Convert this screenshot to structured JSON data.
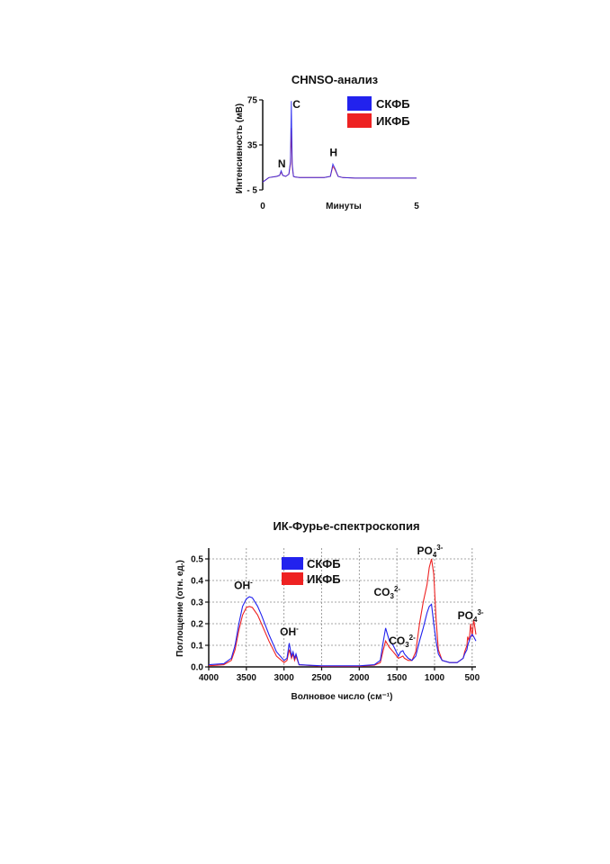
{
  "chart_data": [
    {
      "type": "line",
      "title": "CHNSO-анализ",
      "xlabel": "Минуты",
      "ylabel": "Интенсивность (мВ)",
      "xlim": [
        0,
        5
      ],
      "ylim": [
        -5,
        75
      ],
      "x_ticks": [
        "0",
        "5"
      ],
      "y_ticks": [
        "75",
        "35",
        "- 5"
      ],
      "y_tick_values": [
        75,
        35,
        -5
      ],
      "grid": false,
      "legend_position": "top-right",
      "series": [
        {
          "name": "СКФБ",
          "color": "#2222ee",
          "x": [
            0.0,
            0.2,
            0.45,
            0.55,
            0.6,
            0.65,
            0.75,
            0.85,
            0.9,
            0.93,
            0.96,
            1.0,
            1.05,
            1.2,
            1.5,
            2.0,
            2.2,
            2.28,
            2.35,
            2.45,
            2.6,
            3.0,
            4.0,
            5.0
          ],
          "y": [
            2,
            6,
            7,
            8,
            12,
            8,
            7,
            9,
            20,
            74,
            18,
            7,
            6.5,
            6,
            6,
            6,
            7,
            18,
            14,
            7,
            6,
            5.5,
            5.5,
            5.5
          ]
        },
        {
          "name": "ИКФБ",
          "color": "#ee2222",
          "x": [
            0.0,
            0.2,
            0.45,
            0.55,
            0.6,
            0.65,
            0.75,
            0.85,
            0.9,
            0.93,
            0.96,
            1.0,
            1.05,
            1.2,
            1.5,
            2.0,
            2.2,
            2.28,
            2.35,
            2.45,
            2.6,
            3.0,
            4.0,
            5.0
          ],
          "y": [
            2,
            6,
            7,
            8,
            11,
            8,
            7,
            9,
            18,
            50,
            16,
            7,
            6.5,
            6,
            6,
            6,
            7,
            16,
            13,
            7,
            6,
            5.5,
            5.5,
            5.5
          ]
        }
      ],
      "annotations": [
        {
          "label": "N",
          "x": 0.62,
          "y": 15
        },
        {
          "label": "C",
          "x": 1.1,
          "y": 68
        },
        {
          "label": "H",
          "x": 2.3,
          "y": 25
        }
      ]
    },
    {
      "type": "line",
      "title": "ИК-Фурье-спектроскопия",
      "xlabel": "Волновое число (см⁻¹)",
      "ylabel": "Поглощение (отн. ед.)",
      "xlim": [
        4000,
        450
      ],
      "ylim": [
        0,
        0.55
      ],
      "x_ticks": [
        4000,
        3500,
        3000,
        2500,
        2000,
        1500,
        1000,
        500
      ],
      "y_ticks": [
        "0.0",
        "0.1",
        "0.2",
        "0.3",
        "0.4",
        "0.5"
      ],
      "y_tick_values": [
        0,
        0.1,
        0.2,
        0.3,
        0.4,
        0.5
      ],
      "grid": true,
      "legend_position": "top-left",
      "series": [
        {
          "name": "СКФБ",
          "color": "#2222ee",
          "x": [
            4000,
            3800,
            3700,
            3650,
            3600,
            3550,
            3500,
            3460,
            3420,
            3350,
            3300,
            3200,
            3100,
            3000,
            2960,
            2930,
            2900,
            2880,
            2860,
            2840,
            2800,
            2500,
            2000,
            1800,
            1720,
            1680,
            1650,
            1600,
            1550,
            1480,
            1450,
            1420,
            1400,
            1350,
            1300,
            1250,
            1200,
            1150,
            1100,
            1070,
            1040,
            1010,
            980,
            950,
            900,
            800,
            700,
            620,
            600,
            570,
            560,
            540,
            520,
            500,
            480,
            450
          ],
          "y": [
            0.01,
            0.015,
            0.04,
            0.1,
            0.2,
            0.28,
            0.315,
            0.325,
            0.32,
            0.28,
            0.24,
            0.15,
            0.07,
            0.03,
            0.04,
            0.11,
            0.05,
            0.07,
            0.04,
            0.06,
            0.01,
            0.005,
            0.005,
            0.01,
            0.03,
            0.12,
            0.18,
            0.12,
            0.1,
            0.05,
            0.07,
            0.075,
            0.06,
            0.04,
            0.03,
            0.05,
            0.12,
            0.18,
            0.25,
            0.28,
            0.29,
            0.2,
            0.12,
            0.06,
            0.03,
            0.02,
            0.02,
            0.04,
            0.06,
            0.08,
            0.1,
            0.12,
            0.14,
            0.15,
            0.14,
            0.12
          ]
        },
        {
          "name": "ИКФБ",
          "color": "#ee2222",
          "x": [
            4000,
            3800,
            3700,
            3650,
            3600,
            3550,
            3500,
            3460,
            3420,
            3350,
            3300,
            3200,
            3100,
            3000,
            2960,
            2930,
            2900,
            2880,
            2860,
            2840,
            2800,
            2500,
            2000,
            1800,
            1720,
            1680,
            1650,
            1600,
            1550,
            1480,
            1450,
            1420,
            1400,
            1350,
            1300,
            1250,
            1200,
            1150,
            1100,
            1070,
            1040,
            1010,
            980,
            950,
            900,
            800,
            700,
            620,
            600,
            570,
            560,
            540,
            520,
            500,
            480,
            450
          ],
          "y": [
            0.005,
            0.01,
            0.03,
            0.08,
            0.17,
            0.24,
            0.275,
            0.28,
            0.275,
            0.24,
            0.2,
            0.12,
            0.05,
            0.02,
            0.03,
            0.08,
            0.04,
            0.06,
            0.03,
            0.05,
            0.01,
            0.003,
            0.003,
            0.008,
            0.02,
            0.08,
            0.12,
            0.09,
            0.07,
            0.04,
            0.045,
            0.05,
            0.04,
            0.03,
            0.03,
            0.07,
            0.2,
            0.3,
            0.38,
            0.46,
            0.5,
            0.43,
            0.22,
            0.08,
            0.03,
            0.02,
            0.02,
            0.04,
            0.07,
            0.1,
            0.14,
            0.12,
            0.2,
            0.14,
            0.22,
            0.15
          ]
        }
      ],
      "annotations": [
        {
          "label": "OH",
          "sup": "-",
          "sub": "",
          "x": 3540,
          "y": 0.36
        },
        {
          "label": "OH",
          "sup": "-",
          "sub": "",
          "x": 2930,
          "y": 0.145
        },
        {
          "label": "CO",
          "sup": "2-",
          "sub": "3",
          "x": 1630,
          "y": 0.33
        },
        {
          "label": "CO",
          "sup": "2-",
          "sub": "3",
          "x": 1430,
          "y": 0.105
        },
        {
          "label": "PO",
          "sup": "3-",
          "sub": "4",
          "x": 1060,
          "y": 0.52
        },
        {
          "label": "PO",
          "sup": "3-",
          "sub": "4",
          "x": 520,
          "y": 0.22
        }
      ]
    }
  ]
}
